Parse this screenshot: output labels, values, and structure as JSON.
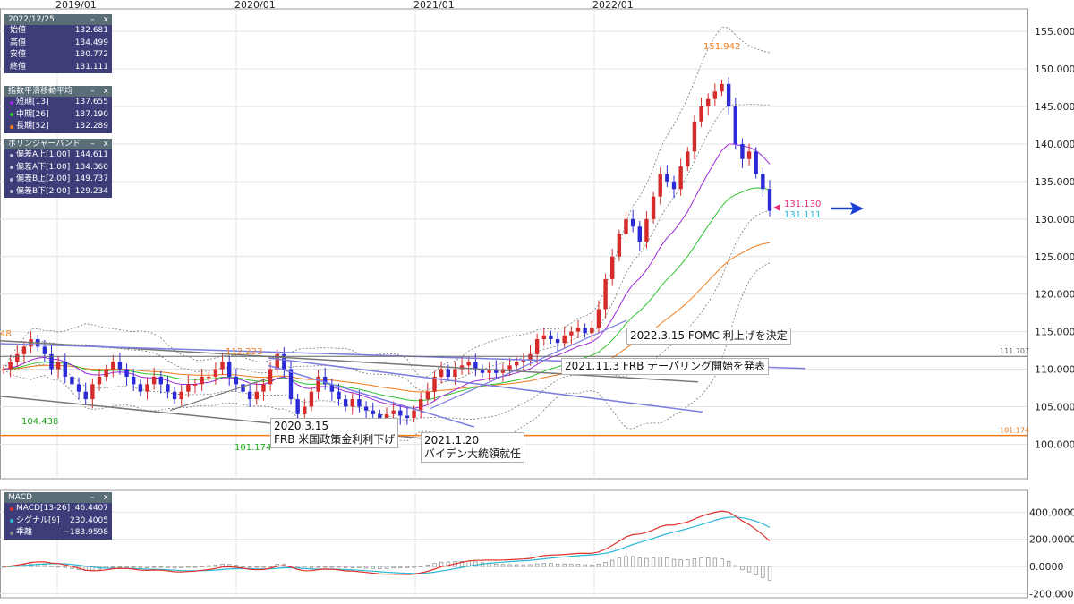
{
  "info_panel": {
    "date": "2022/12/25",
    "rows": [
      {
        "label": "始値",
        "value": "132.681"
      },
      {
        "label": "高値",
        "value": "134.499"
      },
      {
        "label": "安値",
        "value": "130.772"
      },
      {
        "label": "終値",
        "value": "131.111"
      }
    ]
  },
  "ema_panel": {
    "title": "指数平滑移動平均",
    "rows": [
      {
        "label": "短期[13]",
        "value": "137.655",
        "color": "#9b2ad6"
      },
      {
        "label": "中期[26]",
        "value": "137.190",
        "color": "#2ec42e"
      },
      {
        "label": "長期[52]",
        "value": "132.289",
        "color": "#f07a1a"
      }
    ]
  },
  "bb_panel": {
    "title": "ボリンジャーバンド",
    "rows": [
      {
        "label": "偏差A上[1.00]",
        "value": "144.611"
      },
      {
        "label": "偏差A下[1.00]",
        "value": "134.360"
      },
      {
        "label": "偏差B上[2.00]",
        "value": "149.737"
      },
      {
        "label": "偏差B下[2.00]",
        "value": "129.234"
      }
    ]
  },
  "macd_panel": {
    "title": "MACD",
    "rows": [
      {
        "label": "MACD[13-26]",
        "value": "46.4407",
        "color": "#e0302a"
      },
      {
        "label": "シグナル[9]",
        "value": "230.4005",
        "color": "#2ab8d6"
      },
      {
        "label": "乖離",
        "value": "−183.9598",
        "color": "#888888"
      }
    ]
  },
  "panel_controls": {
    "minimize": "–",
    "close": "x"
  },
  "annotations": {
    "fomc": "2022.3.15 FOMC 利上げを決定",
    "taper": "2021.11.3 FRB テーパリング開始を発表",
    "cut_date": "2020.3.15",
    "cut_text": "FRB 米国政策金利利下げ",
    "biden_date": "2021.1.20",
    "biden_text": "バイデン大統領就任"
  },
  "chart_data": {
    "type": "line",
    "price_axis": {
      "ticks": [
        "155.000",
        "150.000",
        "145.000",
        "140.000",
        "135.000",
        "130.000",
        "125.000",
        "120.000",
        "115.000",
        "110.000",
        "105.000",
        "100.000"
      ],
      "ylim": [
        95.4,
        158.0
      ]
    },
    "macd_axis": {
      "ticks": [
        "400.0000",
        "200.0000",
        "0.0000",
        "-200.0000"
      ],
      "ylim": [
        -230,
        560
      ]
    },
    "x_ticks": [
      "2019/01",
      "2020/01",
      "2021/01",
      "2022/01"
    ],
    "price_labels": {
      "high_2022": "151.942",
      "low_2019": "104.438",
      "low_2020": "101.174",
      "high_2020": "112.223",
      "left_edge": "48",
      "last_a": "131.130",
      "last_b": "131.111",
      "hline_upper": "111.707",
      "hline_lower": "101.174"
    },
    "price_close": [
      110,
      111,
      112,
      113,
      114,
      113,
      112,
      110,
      111,
      109,
      108,
      107,
      106,
      108,
      109,
      110,
      111,
      110,
      109,
      108,
      107,
      108,
      109,
      108,
      107,
      106,
      107,
      108,
      108,
      109,
      109,
      110,
      111,
      109,
      108,
      107,
      106,
      107,
      108,
      110,
      112,
      110,
      106,
      104,
      105,
      107,
      109,
      108,
      107,
      106,
      105,
      106,
      105,
      104.5,
      104,
      103.5,
      104,
      104.5,
      103.8,
      103.5,
      104.5,
      106,
      107,
      109,
      110,
      109,
      110,
      110.5,
      111,
      110,
      109.5,
      110,
      109.5,
      110,
      110.5,
      111,
      111.2,
      112,
      114,
      114.5,
      114,
      113.5,
      114.5,
      115,
      115.5,
      114.8,
      115.5,
      118,
      122,
      125,
      128,
      130,
      129,
      127,
      130,
      133,
      136,
      135,
      134,
      137,
      139,
      143,
      145,
      146,
      147,
      148,
      145,
      140,
      138,
      139,
      136,
      134,
      131.1
    ],
    "ema_short_end": "137.655",
    "ema_mid_end": "137.190",
    "ema_long_end": "132.289"
  },
  "colors": {
    "up": "#d62b2b",
    "down": "#2b2bd6",
    "ema13": "#9b2ad6",
    "ema26": "#2ec42e",
    "ema52": "#f07a1a",
    "macd": "#e0302a",
    "signal": "#2ab8d6",
    "hist": "#888888",
    "arrow": "#1a3fd6",
    "pink": "#e0307a",
    "cyan": "#2ab8d6"
  }
}
